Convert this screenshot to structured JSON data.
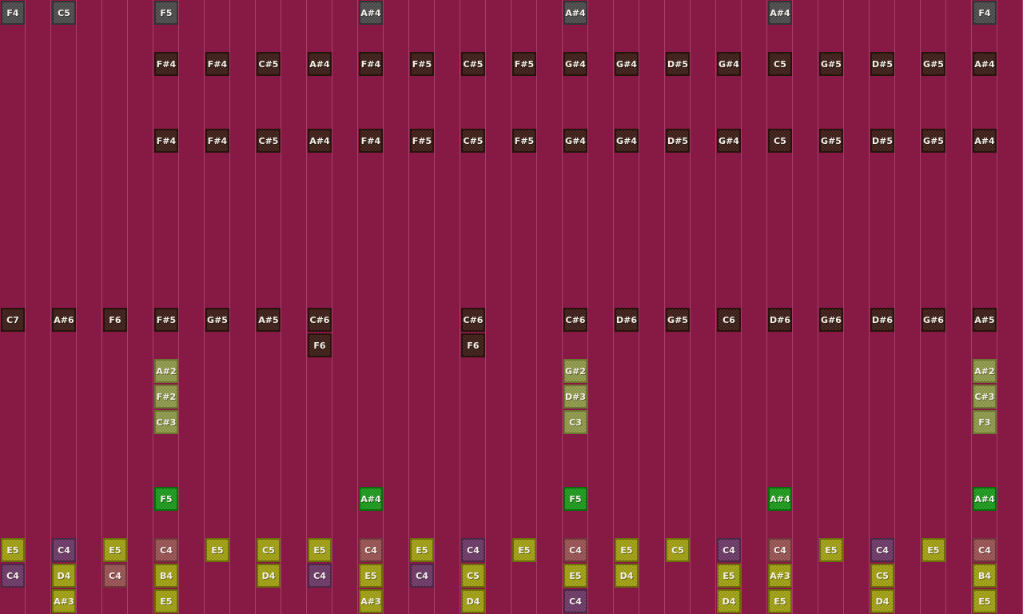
{
  "block_colors": {
    "gray": {
      "fill": "#4c4c4c",
      "edge": "#333333"
    },
    "dark": {
      "fill": "#3c1d16",
      "edge": "#28120c"
    },
    "pale": {
      "fill": "#8f9a4a",
      "edge": "#6c7630"
    },
    "green": {
      "fill": "#1c9c1c",
      "edge": "#0c6a0c"
    },
    "lime": {
      "fill": "#a2a212",
      "edge": "#6c6c08"
    },
    "purple": {
      "fill": "#6e3a68",
      "edge": "#4c2848"
    },
    "red": {
      "fill": "#9a5252",
      "edge": "#6c3838"
    }
  },
  "background": "#861a45",
  "rows": [
    {
      "cells": [
        {
          "note": "F4",
          "block": "gray"
        },
        {
          "note": "C5",
          "block": "gray"
        },
        null,
        {
          "note": "F5",
          "block": "gray"
        },
        null,
        null,
        null,
        {
          "note": "A#4",
          "block": "gray"
        },
        null,
        null,
        null,
        {
          "note": "A#4",
          "block": "gray"
        },
        null,
        null,
        null,
        {
          "note": "A#4",
          "block": "gray"
        },
        null,
        null,
        null,
        {
          "note": "F4",
          "block": "gray"
        }
      ]
    },
    null,
    {
      "cells": [
        null,
        null,
        null,
        {
          "note": "F#4",
          "block": "dark"
        },
        {
          "note": "F#4",
          "block": "dark"
        },
        {
          "note": "C#5",
          "block": "dark"
        },
        {
          "note": "A#4",
          "block": "dark"
        },
        {
          "note": "F#4",
          "block": "dark"
        },
        {
          "note": "F#5",
          "block": "dark"
        },
        {
          "note": "C#5",
          "block": "dark"
        },
        {
          "note": "F#5",
          "block": "dark"
        },
        {
          "note": "G#4",
          "block": "dark"
        },
        {
          "note": "G#4",
          "block": "dark"
        },
        {
          "note": "D#5",
          "block": "dark"
        },
        {
          "note": "G#4",
          "block": "dark"
        },
        {
          "note": "C5",
          "block": "dark"
        },
        {
          "note": "G#5",
          "block": "dark"
        },
        {
          "note": "D#5",
          "block": "dark"
        },
        {
          "note": "G#5",
          "block": "dark"
        },
        {
          "note": "A#4",
          "block": "dark"
        }
      ]
    },
    null,
    null,
    {
      "cells": [
        null,
        null,
        null,
        {
          "note": "F#4",
          "block": "dark"
        },
        {
          "note": "F#4",
          "block": "dark"
        },
        {
          "note": "C#5",
          "block": "dark"
        },
        {
          "note": "A#4",
          "block": "dark"
        },
        {
          "note": "F#4",
          "block": "dark"
        },
        {
          "note": "F#5",
          "block": "dark"
        },
        {
          "note": "C#5",
          "block": "dark"
        },
        {
          "note": "F#5",
          "block": "dark"
        },
        {
          "note": "G#4",
          "block": "dark"
        },
        {
          "note": "G#4",
          "block": "dark"
        },
        {
          "note": "D#5",
          "block": "dark"
        },
        {
          "note": "G#4",
          "block": "dark"
        },
        {
          "note": "C5",
          "block": "dark"
        },
        {
          "note": "G#5",
          "block": "dark"
        },
        {
          "note": "D#5",
          "block": "dark"
        },
        {
          "note": "G#5",
          "block": "dark"
        },
        {
          "note": "A#4",
          "block": "dark"
        }
      ]
    },
    null,
    null,
    null,
    null,
    null,
    null,
    {
      "cells": [
        {
          "note": "C7",
          "block": "dark"
        },
        {
          "note": "A#6",
          "block": "dark"
        },
        {
          "note": "F6",
          "block": "dark"
        },
        {
          "note": "F#5",
          "block": "dark"
        },
        {
          "note": "G#5",
          "block": "dark"
        },
        {
          "note": "A#5",
          "block": "dark"
        },
        {
          "note": "C#6",
          "block": "dark"
        },
        null,
        null,
        {
          "note": "C#6",
          "block": "dark"
        },
        null,
        {
          "note": "C#6",
          "block": "dark"
        },
        {
          "note": "D#6",
          "block": "dark"
        },
        {
          "note": "G#5",
          "block": "dark"
        },
        {
          "note": "C6",
          "block": "dark"
        },
        {
          "note": "D#6",
          "block": "dark"
        },
        {
          "note": "G#6",
          "block": "dark"
        },
        {
          "note": "D#6",
          "block": "dark"
        },
        {
          "note": "G#6",
          "block": "dark"
        },
        {
          "note": "A#5",
          "block": "dark"
        }
      ]
    },
    {
      "cells": [
        null,
        null,
        null,
        null,
        null,
        null,
        {
          "note": "F6",
          "block": "dark"
        },
        null,
        null,
        {
          "note": "F6",
          "block": "dark"
        },
        null,
        null,
        null,
        null,
        null,
        null,
        null,
        null,
        null,
        null
      ]
    },
    {
      "cells": [
        null,
        null,
        null,
        {
          "note": "A#2",
          "block": "pale"
        },
        null,
        null,
        null,
        null,
        null,
        null,
        null,
        {
          "note": "G#2",
          "block": "pale"
        },
        null,
        null,
        null,
        null,
        null,
        null,
        null,
        {
          "note": "A#2",
          "block": "pale"
        }
      ]
    },
    {
      "cells": [
        null,
        null,
        null,
        {
          "note": "F#2",
          "block": "pale"
        },
        null,
        null,
        null,
        null,
        null,
        null,
        null,
        {
          "note": "D#3",
          "block": "pale"
        },
        null,
        null,
        null,
        null,
        null,
        null,
        null,
        {
          "note": "C#3",
          "block": "pale"
        }
      ]
    },
    {
      "cells": [
        null,
        null,
        null,
        {
          "note": "C#3",
          "block": "pale"
        },
        null,
        null,
        null,
        null,
        null,
        null,
        null,
        {
          "note": "C3",
          "block": "pale"
        },
        null,
        null,
        null,
        null,
        null,
        null,
        null,
        {
          "note": "F3",
          "block": "pale"
        }
      ]
    },
    null,
    null,
    {
      "cells": [
        null,
        null,
        null,
        {
          "note": "F5",
          "block": "green"
        },
        null,
        null,
        null,
        {
          "note": "A#4",
          "block": "green"
        },
        null,
        null,
        null,
        {
          "note": "F5",
          "block": "green"
        },
        null,
        null,
        null,
        {
          "note": "A#4",
          "block": "green"
        },
        null,
        null,
        null,
        {
          "note": "A#4",
          "block": "green"
        }
      ]
    },
    null,
    {
      "cells": [
        {
          "note": "E5",
          "block": "lime"
        },
        {
          "note": "C4",
          "block": "purple"
        },
        {
          "note": "E5",
          "block": "lime"
        },
        {
          "note": "C4",
          "block": "red"
        },
        {
          "note": "E5",
          "block": "lime"
        },
        {
          "note": "C5",
          "block": "lime"
        },
        {
          "note": "E5",
          "block": "lime"
        },
        {
          "note": "C4",
          "block": "red"
        },
        {
          "note": "E5",
          "block": "lime"
        },
        {
          "note": "C4",
          "block": "purple"
        },
        {
          "note": "E5",
          "block": "lime"
        },
        {
          "note": "C4",
          "block": "red"
        },
        {
          "note": "E5",
          "block": "lime"
        },
        {
          "note": "C5",
          "block": "lime"
        },
        {
          "note": "C4",
          "block": "purple"
        },
        {
          "note": "C4",
          "block": "red"
        },
        {
          "note": "E5",
          "block": "lime"
        },
        {
          "note": "C4",
          "block": "purple"
        },
        {
          "note": "E5",
          "block": "lime"
        },
        {
          "note": "C4",
          "block": "red"
        }
      ]
    },
    {
      "cells": [
        {
          "note": "C4",
          "block": "purple"
        },
        {
          "note": "D4",
          "block": "lime"
        },
        {
          "note": "C4",
          "block": "red"
        },
        {
          "note": "B4",
          "block": "lime"
        },
        null,
        {
          "note": "D4",
          "block": "lime"
        },
        {
          "note": "C4",
          "block": "purple"
        },
        {
          "note": "E5",
          "block": "lime"
        },
        {
          "note": "C4",
          "block": "purple"
        },
        {
          "note": "C5",
          "block": "lime"
        },
        null,
        {
          "note": "E5",
          "block": "lime"
        },
        {
          "note": "D4",
          "block": "lime"
        },
        null,
        {
          "note": "E5",
          "block": "lime"
        },
        {
          "note": "A#3",
          "block": "lime"
        },
        null,
        {
          "note": "C5",
          "block": "lime"
        },
        null,
        {
          "note": "B4",
          "block": "lime"
        }
      ]
    },
    {
      "cells": [
        null,
        {
          "note": "A#3",
          "block": "lime"
        },
        null,
        {
          "note": "E5",
          "block": "lime"
        },
        null,
        null,
        null,
        {
          "note": "A#3",
          "block": "lime"
        },
        null,
        {
          "note": "D4",
          "block": "lime"
        },
        null,
        {
          "note": "C4",
          "block": "purple"
        },
        null,
        null,
        {
          "note": "D4",
          "block": "lime"
        },
        {
          "note": "E5",
          "block": "lime"
        },
        null,
        {
          "note": "D4",
          "block": "lime"
        },
        null,
        {
          "note": "E5",
          "block": "lime"
        }
      ]
    }
  ]
}
